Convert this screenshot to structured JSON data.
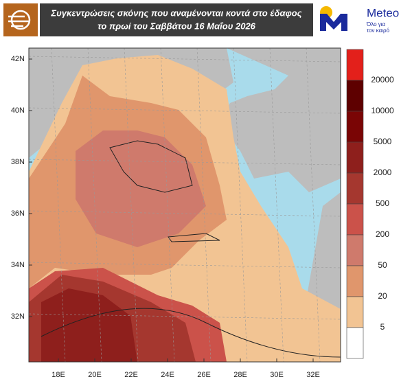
{
  "header": {
    "title_lines": [
      "Συγκεντρώσεις σκόνης που αναμένονται κοντά στο έδαφος",
      "το πρωί του Σαββάτου 16 Μαΐου 2026"
    ],
    "logo": {
      "name": "Meteo",
      "tagline": [
        "Όλο για",
        "τον καιρό"
      ]
    }
  },
  "map": {
    "lat_labels": [
      "42N",
      "40N",
      "38N",
      "36N",
      "34N",
      "32N"
    ],
    "lon_labels": [
      "18E",
      "20E",
      "22E",
      "24E",
      "26E",
      "28E",
      "30E",
      "32E"
    ]
  },
  "legend": {
    "labels": [
      "20000",
      "10000",
      "5000",
      "2000",
      "500",
      "200",
      "50",
      "20",
      "5"
    ],
    "colors": [
      "#e3201b",
      "#5e0000",
      "#7a0505",
      "#8e1f1c",
      "#a5372f",
      "#cb524a",
      "#cf7a6c",
      "#e0966c",
      "#f2c493",
      "#ffffff"
    ]
  }
}
